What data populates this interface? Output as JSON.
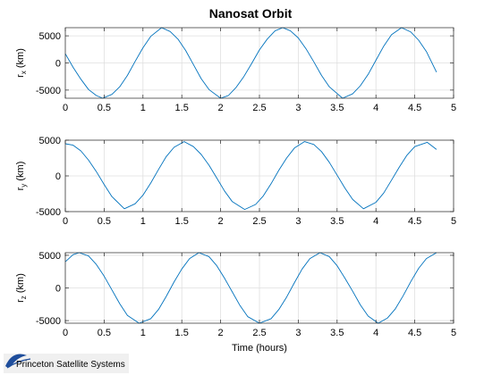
{
  "chart_data": [
    {
      "type": "line",
      "title": "Nanosat Orbit",
      "xlabel": "",
      "ylabel_main": "r",
      "ylabel_sub": "x",
      "ylabel_unit": "(km)",
      "xlim": [
        0,
        5
      ],
      "ylim": [
        -6500,
        6500
      ],
      "xticks": [
        0,
        0.5,
        1,
        1.5,
        2,
        2.5,
        3,
        3.5,
        4,
        4.5,
        5
      ],
      "xtick_labels": [
        "0",
        "0.5",
        "1",
        "1.5",
        "2",
        "2.5",
        "3",
        "3.5",
        "4",
        "4.5",
        "5"
      ],
      "yticks": [
        -5000,
        0,
        5000
      ],
      "ytick_labels": [
        "-5000",
        "0",
        "5000"
      ],
      "grid": true,
      "series": [
        {
          "color": "#0072bd",
          "x": [
            0,
            0.1,
            0.2,
            0.3,
            0.4,
            0.48,
            0.6,
            0.7,
            0.8,
            0.9,
            1.0,
            1.1,
            1.24,
            1.35,
            1.45,
            1.55,
            1.65,
            1.75,
            1.85,
            2.0,
            2.1,
            2.2,
            2.3,
            2.4,
            2.5,
            2.6,
            2.7,
            2.8,
            2.9,
            3.0,
            3.1,
            3.2,
            3.3,
            3.4,
            3.57,
            3.7,
            3.8,
            3.9,
            4.0,
            4.1,
            4.2,
            4.33,
            4.45,
            4.55,
            4.65,
            4.78
          ],
          "y": [
            1700,
            -800,
            -3000,
            -4900,
            -6000,
            -6500,
            -5800,
            -4400,
            -2300,
            300,
            2800,
            4900,
            6500,
            5800,
            4400,
            2300,
            -300,
            -2900,
            -4900,
            -6500,
            -6000,
            -4500,
            -2500,
            -100,
            2400,
            4400,
            5900,
            6500,
            5900,
            4600,
            2600,
            200,
            -2300,
            -4400,
            -6500,
            -5700,
            -4200,
            -2100,
            500,
            3100,
            5200,
            6500,
            5700,
            4200,
            2100,
            -1700
          ]
        }
      ]
    },
    {
      "type": "line",
      "title": "",
      "xlabel": "",
      "ylabel_main": "r",
      "ylabel_sub": "y",
      "ylabel_unit": "(km)",
      "xlim": [
        0,
        5
      ],
      "ylim": [
        -5000,
        5000
      ],
      "xticks": [
        0,
        0.5,
        1,
        1.5,
        2,
        2.5,
        3,
        3.5,
        4,
        4.5,
        5
      ],
      "xtick_labels": [
        "0",
        "0.5",
        "1",
        "1.5",
        "2",
        "2.5",
        "3",
        "3.5",
        "4",
        "4.5",
        "5"
      ],
      "yticks": [
        -5000,
        0,
        5000
      ],
      "ytick_labels": [
        "-5000",
        "0",
        "5000"
      ],
      "grid": true,
      "series": [
        {
          "color": "#0072bd",
          "x": [
            0,
            0.1,
            0.2,
            0.3,
            0.4,
            0.5,
            0.6,
            0.76,
            0.9,
            1.0,
            1.1,
            1.2,
            1.3,
            1.4,
            1.53,
            1.65,
            1.75,
            1.85,
            1.95,
            2.05,
            2.15,
            2.31,
            2.45,
            2.55,
            2.65,
            2.75,
            2.85,
            2.95,
            3.08,
            3.2,
            3.3,
            3.4,
            3.5,
            3.6,
            3.7,
            3.84,
            4.0,
            4.1,
            4.2,
            4.3,
            4.4,
            4.5,
            4.66,
            4.78
          ],
          "y": [
            4500,
            4300,
            3500,
            2200,
            600,
            -1200,
            -2900,
            -4600,
            -3900,
            -2700,
            -1000,
            900,
            2700,
            4000,
            4800,
            4100,
            3000,
            1500,
            -300,
            -2100,
            -3600,
            -4700,
            -4000,
            -2800,
            -1100,
            800,
            2500,
            3900,
            4800,
            4400,
            3400,
            1900,
            100,
            -1700,
            -3300,
            -4600,
            -3700,
            -2400,
            -600,
            1200,
            2900,
            4100,
            4700,
            3700
          ]
        }
      ]
    },
    {
      "type": "line",
      "title": "",
      "xlabel": "Time (hours)",
      "ylabel_main": "r",
      "ylabel_sub": "z",
      "ylabel_unit": "(km)",
      "xlim": [
        0,
        5
      ],
      "ylim": [
        -5400,
        5400
      ],
      "xticks": [
        0,
        0.5,
        1,
        1.5,
        2,
        2.5,
        3,
        3.5,
        4,
        4.5,
        5
      ],
      "xtick_labels": [
        "0",
        "0.5",
        "1",
        "1.5",
        "2",
        "2.5",
        "3",
        "3.5",
        "4",
        "4.5",
        "5"
      ],
      "yticks": [
        -5000,
        0,
        5000
      ],
      "ytick_labels": [
        "-5000",
        "0",
        "5000"
      ],
      "grid": true,
      "series": [
        {
          "color": "#0072bd",
          "x": [
            0,
            0.1,
            0.18,
            0.3,
            0.4,
            0.5,
            0.6,
            0.7,
            0.8,
            0.95,
            1.1,
            1.2,
            1.3,
            1.4,
            1.5,
            1.6,
            1.72,
            1.85,
            1.95,
            2.05,
            2.15,
            2.25,
            2.35,
            2.5,
            2.65,
            2.75,
            2.85,
            2.95,
            3.05,
            3.15,
            3.28,
            3.4,
            3.5,
            3.6,
            3.7,
            3.8,
            3.9,
            4.03,
            4.15,
            4.25,
            4.35,
            4.45,
            4.55,
            4.65,
            4.78
          ],
          "y": [
            4000,
            5100,
            5400,
            4900,
            3600,
            1800,
            -300,
            -2400,
            -4200,
            -5400,
            -4700,
            -3300,
            -1300,
            900,
            2900,
            4500,
            5400,
            4800,
            3400,
            1500,
            -600,
            -2700,
            -4400,
            -5400,
            -4700,
            -3300,
            -1400,
            800,
            2900,
            4500,
            5400,
            4800,
            3400,
            1500,
            -500,
            -2600,
            -4300,
            -5400,
            -4600,
            -3200,
            -1200,
            1000,
            3000,
            4500,
            5400
          ]
        }
      ]
    }
  ],
  "watermark": {
    "text": "Princeton Satellite Systems"
  }
}
